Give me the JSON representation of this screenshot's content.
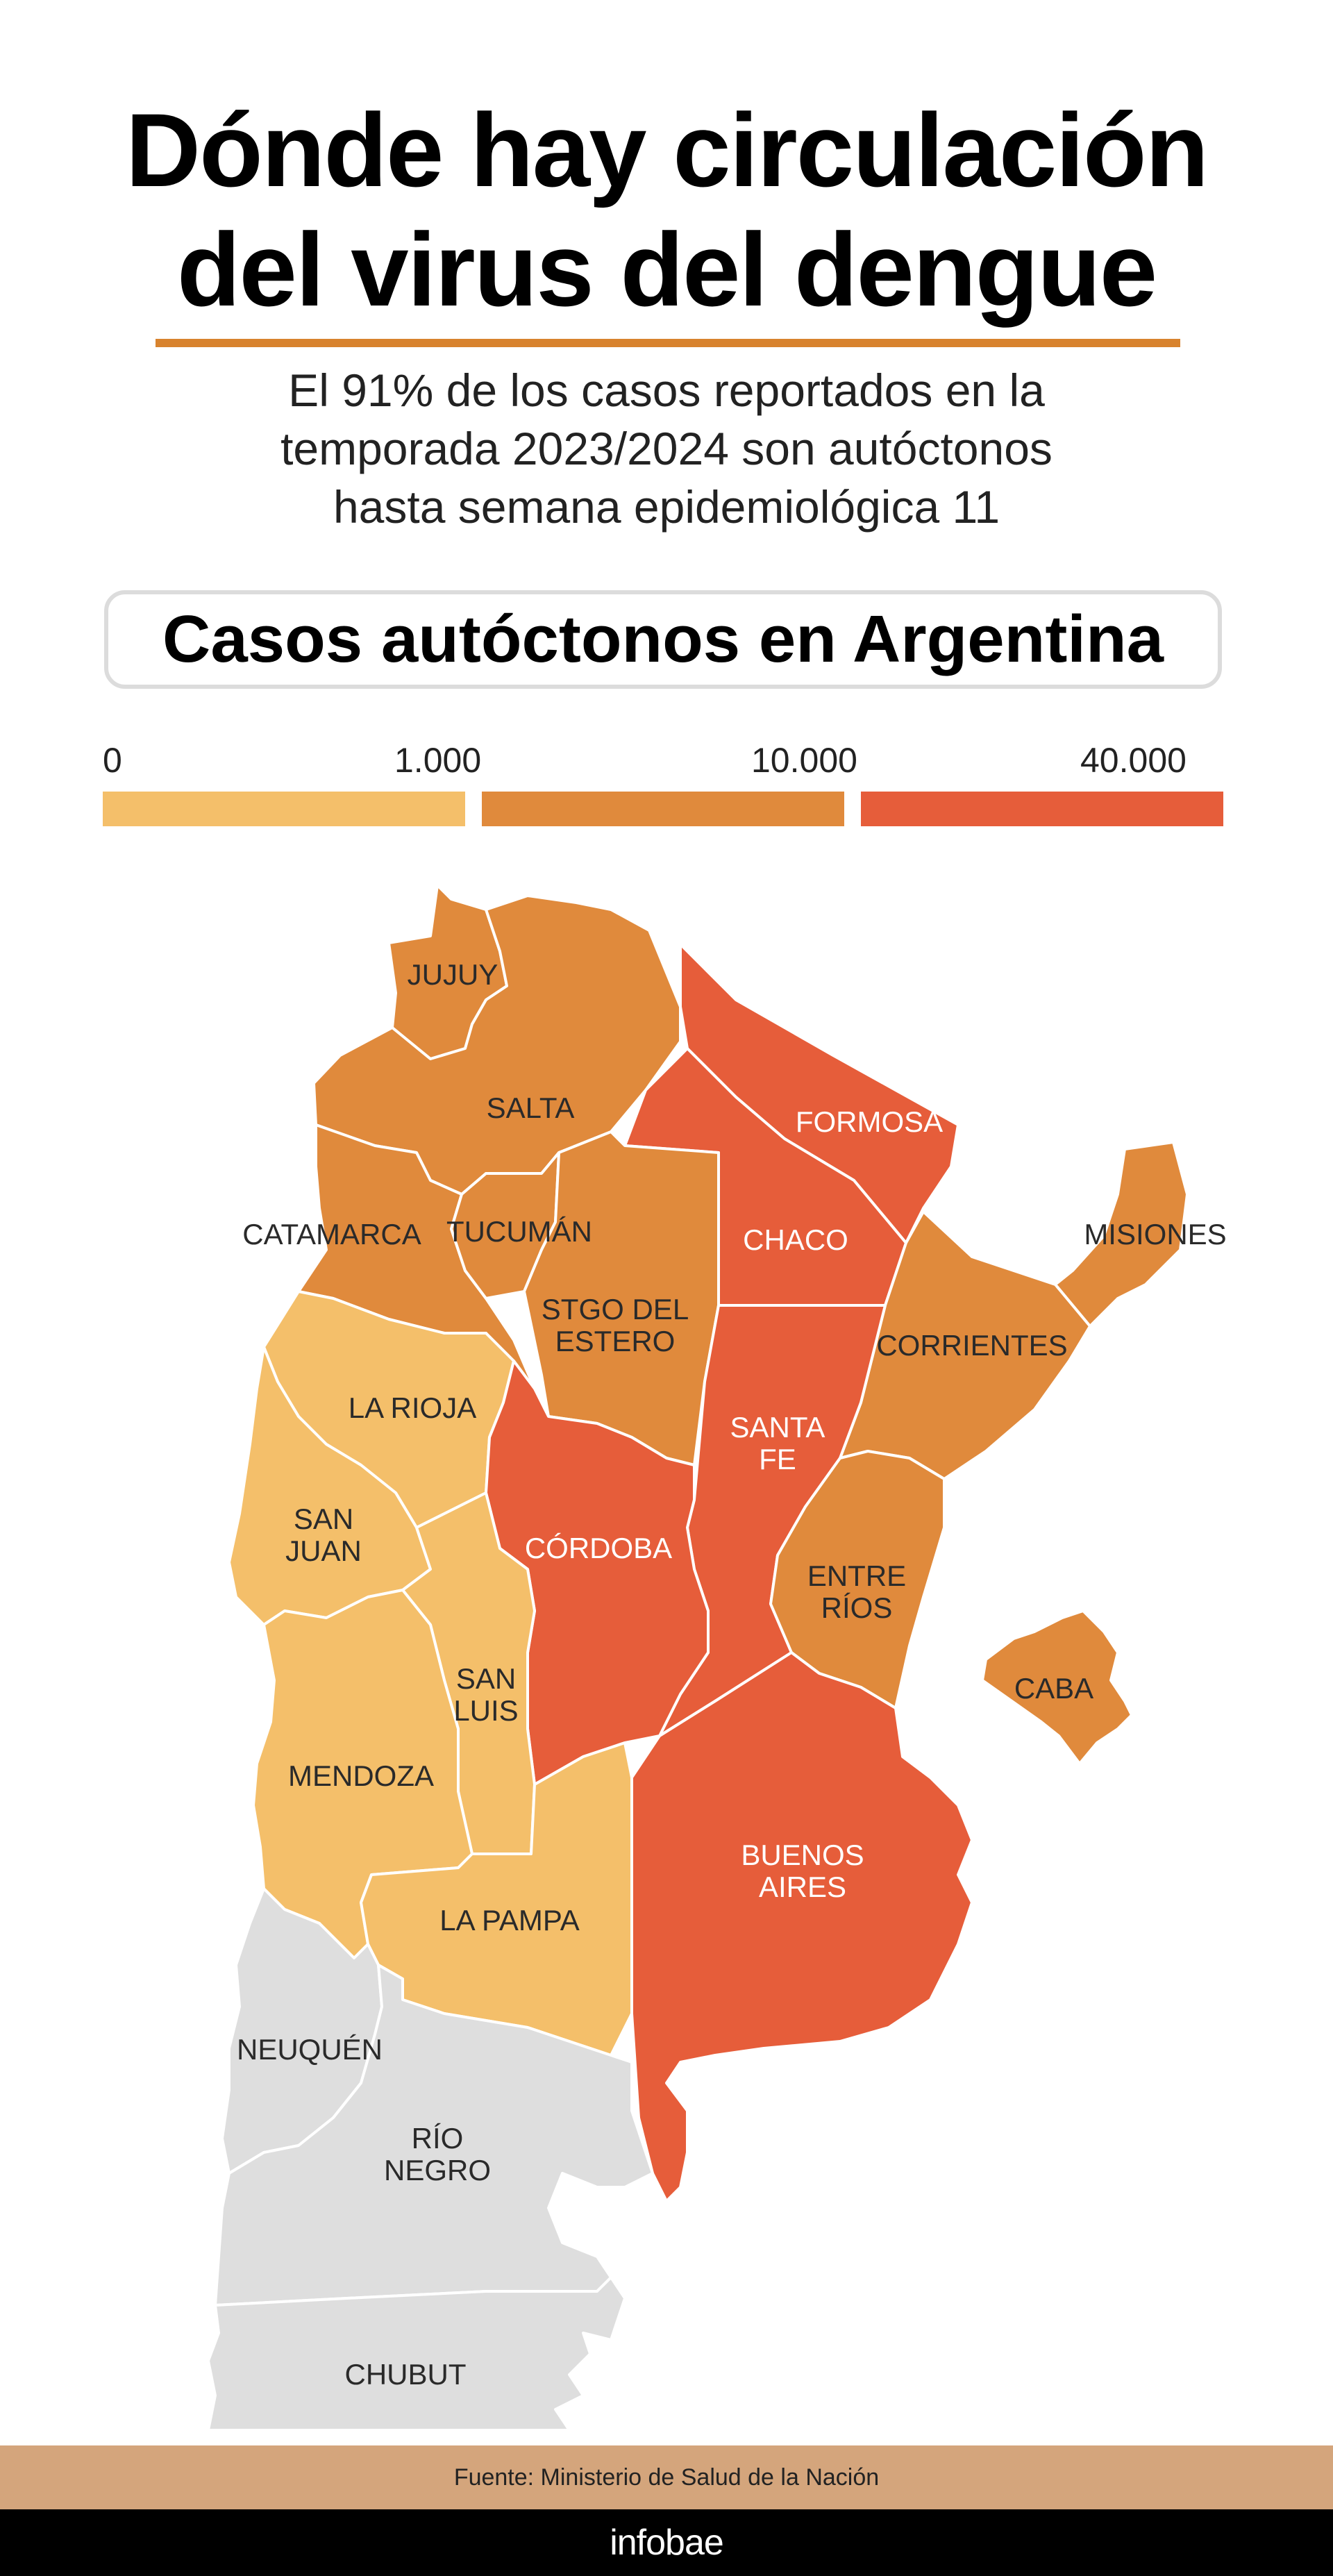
{
  "header": {
    "title_line1": "Dónde hay circulación",
    "title_line2": "del virus del dengue",
    "subtitle_line1": "El 91% de los casos reportados en la",
    "subtitle_line2": "temporada 2023/2024 son autóctonos",
    "subtitle_line3": "hasta semana epidemiológica 11"
  },
  "panel_title": "Casos autóctonos en Argentina",
  "legend": {
    "ticks": [
      "0",
      "1.000",
      "10.000",
      "40.000"
    ],
    "colors": [
      "#f4bf6a",
      "#e08a3c",
      "#e65d3a"
    ]
  },
  "map": {
    "no_data_color": "#dedede",
    "provinces": [
      {
        "name": "JUJUY",
        "color": "#e08a3c"
      },
      {
        "name": "SALTA",
        "color": "#e08a3c"
      },
      {
        "name": "FORMOSA",
        "color": "#e65d3a"
      },
      {
        "name": "CHACO",
        "color": "#e65d3a"
      },
      {
        "name": "MISIONES",
        "color": "#e08a3c"
      },
      {
        "name": "CATAMARCA",
        "color": "#e08a3c"
      },
      {
        "name": "TUCUMÁN",
        "color": "#e08a3c"
      },
      {
        "name": "STGO DEL ESTERO",
        "line1": "STGO DEL",
        "line2": "ESTERO",
        "color": "#e08a3c"
      },
      {
        "name": "CORRIENTES",
        "color": "#e08a3c"
      },
      {
        "name": "LA RIOJA",
        "color": "#f4bf6a"
      },
      {
        "name": "SANTA FE",
        "line1": "SANTA",
        "line2": "FE",
        "color": "#e65d3a"
      },
      {
        "name": "SAN JUAN",
        "line1": "SAN",
        "line2": "JUAN",
        "color": "#f4bf6a"
      },
      {
        "name": "CÓRDOBA",
        "color": "#e65d3a"
      },
      {
        "name": "ENTRE RÍOS",
        "line1": "ENTRE",
        "line2": "RÍOS",
        "color": "#e08a3c"
      },
      {
        "name": "SAN LUIS",
        "line1": "SAN",
        "line2": "LUIS",
        "color": "#f4bf6a"
      },
      {
        "name": "CABA",
        "color": "#e08a3c"
      },
      {
        "name": "MENDOZA",
        "color": "#f4bf6a"
      },
      {
        "name": "BUENOS AIRES",
        "line1": "BUENOS",
        "line2": "AIRES",
        "color": "#e65d3a"
      },
      {
        "name": "LA PAMPA",
        "color": "#f4bf6a"
      },
      {
        "name": "NEUQUÉN",
        "color": "#dedede"
      },
      {
        "name": "RÍO NEGRO",
        "line1": "RÍO",
        "line2": "NEGRO",
        "color": "#dedede"
      },
      {
        "name": "CHUBUT",
        "color": "#dedede"
      }
    ]
  },
  "footer": {
    "source": "Fuente: Ministerio de Salud de la Nación",
    "brand": "infobae"
  }
}
